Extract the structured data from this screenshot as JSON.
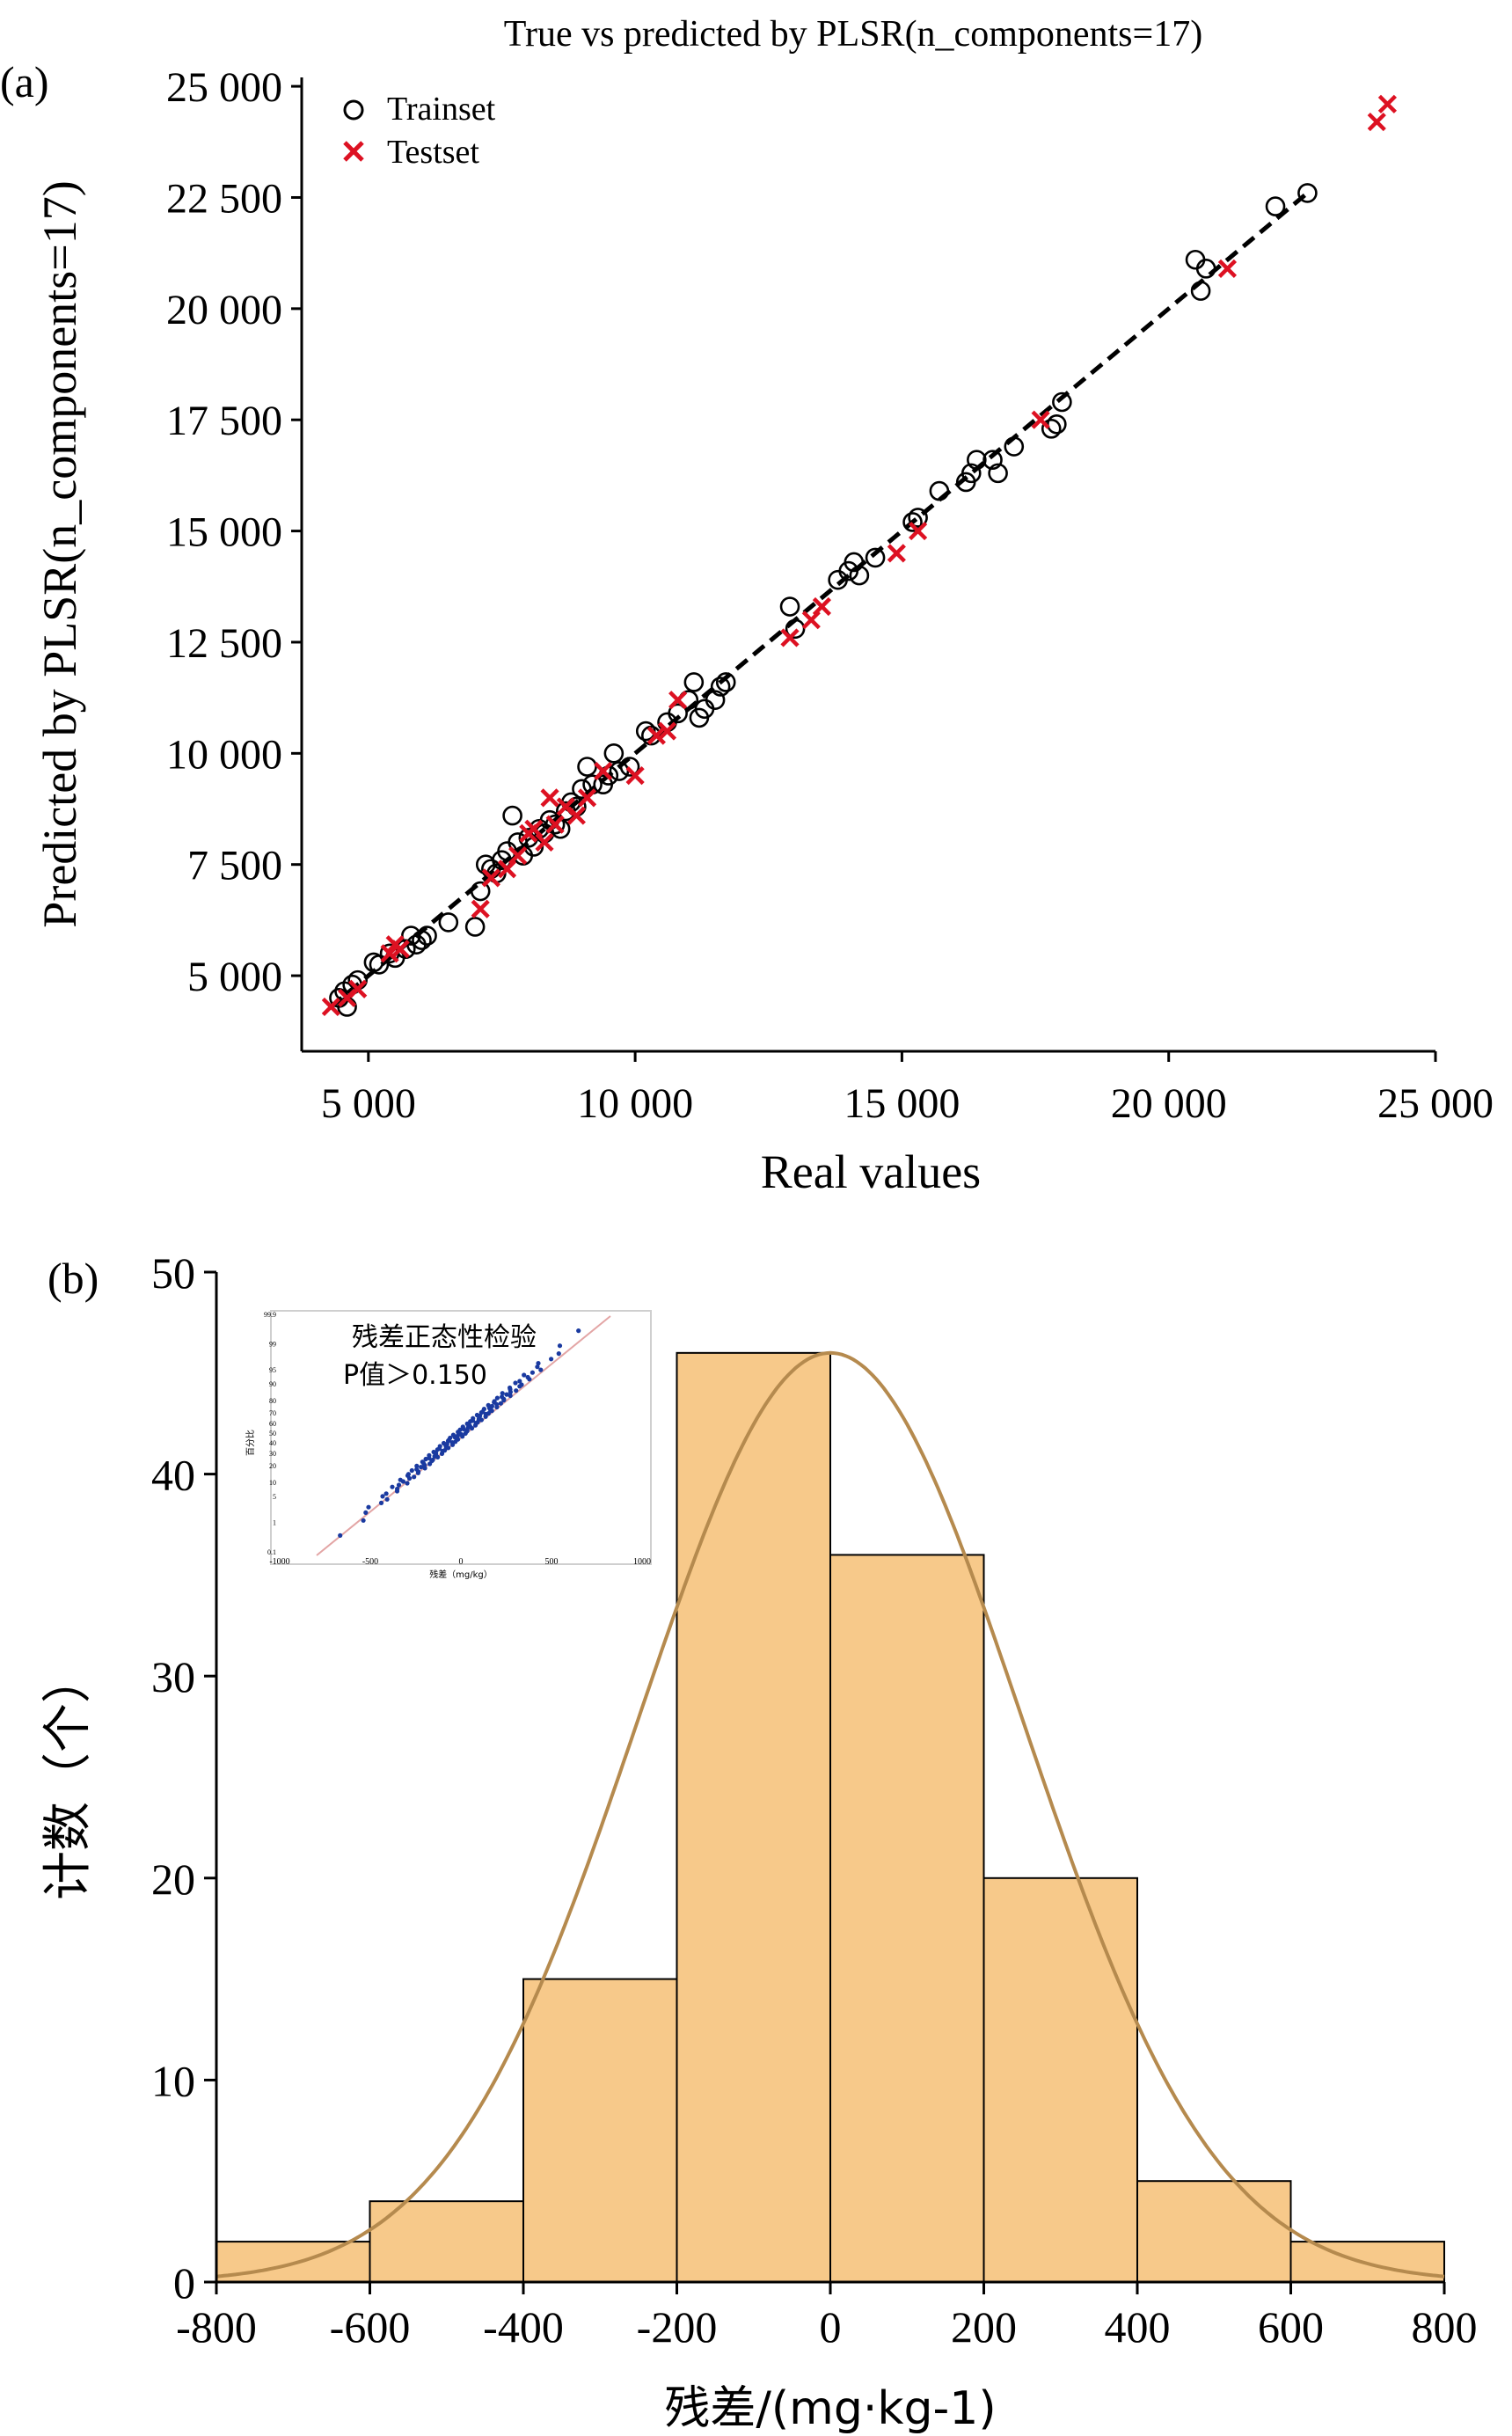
{
  "chart_data": [
    {
      "type": "scatter",
      "panel_label": "(a)",
      "title": "True vs predicted by PLSR(n_components=17)",
      "xlabel": "Real values",
      "ylabel": "Predicted by PLSR(n_components=17)",
      "xlim": [
        3750,
        25000
      ],
      "ylim": [
        3300,
        25200
      ],
      "xticks": [
        5000,
        10000,
        15000,
        20000,
        25000
      ],
      "xtick_labels": [
        "5 000",
        "10 000",
        "15 000",
        "20 000",
        "25 000"
      ],
      "yticks": [
        5000,
        7500,
        10000,
        12500,
        15000,
        17500,
        20000,
        22500,
        25000
      ],
      "ytick_labels": [
        "5 000",
        "7 500",
        "10 000",
        "12 500",
        "15 000",
        "17 500",
        "20 000",
        "22 500",
        "25 000"
      ],
      "legend_position": "top-left",
      "grid": false,
      "reference_line": {
        "style": "dashed",
        "color": "#000000",
        "from": [
          4300,
          4300
        ],
        "to": [
          22600,
          22600
        ]
      },
      "series": [
        {
          "name": "Trainset",
          "marker": "circle-open",
          "color": "#000000",
          "points": [
            [
              4450,
              4500
            ],
            [
              4550,
              4650
            ],
            [
              4600,
              4300
            ],
            [
              4700,
              4800
            ],
            [
              4800,
              4900
            ],
            [
              5100,
              5300
            ],
            [
              5200,
              5250
            ],
            [
              5400,
              5500
            ],
            [
              5500,
              5400
            ],
            [
              5700,
              5600
            ],
            [
              5800,
              5900
            ],
            [
              5900,
              5700
            ],
            [
              6000,
              5800
            ],
            [
              6100,
              5900
            ],
            [
              6500,
              6200
            ],
            [
              7000,
              6100
            ],
            [
              7100,
              6900
            ],
            [
              7200,
              7500
            ],
            [
              7300,
              7400
            ],
            [
              7400,
              7300
            ],
            [
              7500,
              7600
            ],
            [
              7600,
              7800
            ],
            [
              7700,
              8600
            ],
            [
              7800,
              8000
            ],
            [
              7900,
              7700
            ],
            [
              8000,
              8100
            ],
            [
              8100,
              7900
            ],
            [
              8200,
              8300
            ],
            [
              8300,
              8200
            ],
            [
              8400,
              8500
            ],
            [
              8500,
              8400
            ],
            [
              8600,
              8300
            ],
            [
              8700,
              8700
            ],
            [
              8800,
              8900
            ],
            [
              8900,
              8800
            ],
            [
              9000,
              9200
            ],
            [
              9100,
              9700
            ],
            [
              9200,
              9300
            ],
            [
              9400,
              9300
            ],
            [
              9500,
              9500
            ],
            [
              9600,
              10000
            ],
            [
              9700,
              9600
            ],
            [
              9900,
              9700
            ],
            [
              10200,
              10500
            ],
            [
              10300,
              10400
            ],
            [
              10600,
              10700
            ],
            [
              10800,
              10900
            ],
            [
              11000,
              11200
            ],
            [
              11100,
              11600
            ],
            [
              11200,
              10800
            ],
            [
              11300,
              11000
            ],
            [
              11500,
              11200
            ],
            [
              11600,
              11500
            ],
            [
              11700,
              11600
            ],
            [
              12900,
              13300
            ],
            [
              13000,
              12800
            ],
            [
              13800,
              13900
            ],
            [
              14000,
              14100
            ],
            [
              14100,
              14300
            ],
            [
              14200,
              14000
            ],
            [
              14500,
              14400
            ],
            [
              15200,
              15200
            ],
            [
              15300,
              15300
            ],
            [
              15700,
              15900
            ],
            [
              16200,
              16100
            ],
            [
              16300,
              16300
            ],
            [
              16400,
              16600
            ],
            [
              16700,
              16600
            ],
            [
              16800,
              16300
            ],
            [
              17100,
              16900
            ],
            [
              17800,
              17300
            ],
            [
              17900,
              17400
            ],
            [
              18000,
              17900
            ],
            [
              20500,
              21100
            ],
            [
              20700,
              20900
            ],
            [
              20600,
              20400
            ],
            [
              22000,
              22300
            ],
            [
              22600,
              22600
            ]
          ]
        },
        {
          "name": "Testset",
          "marker": "x",
          "color": "#dd1122",
          "points": [
            [
              4300,
              4300
            ],
            [
              4600,
              4500
            ],
            [
              4800,
              4700
            ],
            [
              5400,
              5500
            ],
            [
              5500,
              5700
            ],
            [
              5600,
              5600
            ],
            [
              7100,
              6500
            ],
            [
              7300,
              7200
            ],
            [
              7600,
              7400
            ],
            [
              7800,
              7700
            ],
            [
              8000,
              8200
            ],
            [
              8100,
              8300
            ],
            [
              8300,
              8000
            ],
            [
              8400,
              9000
            ],
            [
              8500,
              8400
            ],
            [
              8700,
              8800
            ],
            [
              8900,
              8600
            ],
            [
              9100,
              9000
            ],
            [
              9400,
              9600
            ],
            [
              10000,
              9500
            ],
            [
              10400,
              10400
            ],
            [
              10600,
              10500
            ],
            [
              10800,
              11200
            ],
            [
              12900,
              12600
            ],
            [
              13300,
              13000
            ],
            [
              13500,
              13300
            ],
            [
              14900,
              14500
            ],
            [
              15300,
              15000
            ],
            [
              17600,
              17500
            ],
            [
              21100,
              20900
            ],
            [
              23900,
              24200
            ],
            [
              24100,
              24600
            ]
          ]
        }
      ]
    },
    {
      "type": "bar",
      "subtype": "histogram",
      "panel_label": "(b)",
      "xlabel": "残差/(mg·kg-1)",
      "ylabel": "计数（个）",
      "xlim": [
        -800,
        800
      ],
      "ylim": [
        0,
        50
      ],
      "xticks": [
        -800,
        -600,
        -400,
        -200,
        0,
        200,
        400,
        600,
        800
      ],
      "yticks": [
        0,
        10,
        20,
        30,
        40,
        50
      ],
      "bin_edges": [
        -800,
        -600,
        -400,
        -200,
        0,
        200,
        400,
        600,
        800
      ],
      "values": [
        2,
        4,
        15,
        46,
        36,
        20,
        5,
        2
      ],
      "bar_color": "#f7c98a",
      "edge_color": "#000000",
      "normal_curve": {
        "color": "#b58a4e",
        "mean": 0,
        "sd": 250,
        "peak": 46
      },
      "inset": {
        "type": "scatter",
        "title": "残差正态性检验",
        "p_value_label": "P值＞0.150",
        "xlabel": "残差（mg/kg）",
        "ylabel": "百分比",
        "xticks": [
          -1000,
          -500,
          0,
          500,
          1000
        ],
        "yticks": [
          0.1,
          1,
          5,
          10,
          20,
          30,
          40,
          50,
          60,
          70,
          80,
          90,
          95,
          99,
          99.9
        ],
        "point_color": "#1a3aa0",
        "line_color": "#e3a5a5"
      }
    }
  ]
}
